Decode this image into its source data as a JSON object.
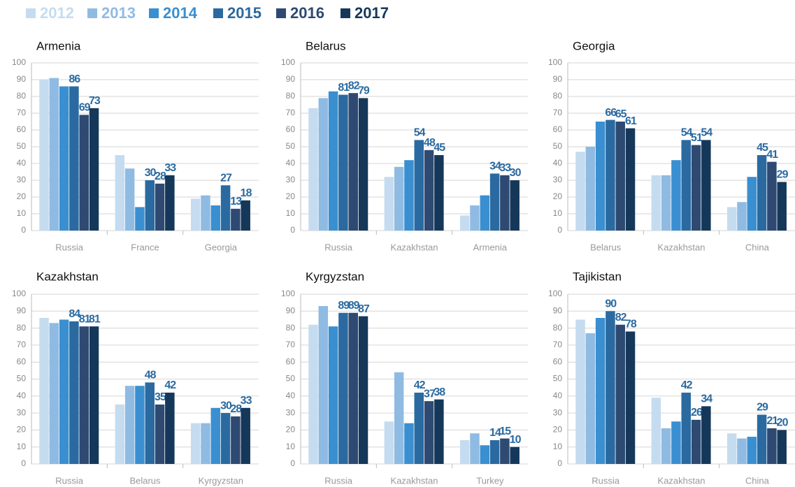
{
  "legend": [
    {
      "name": "2012",
      "color": "#c5dcf0"
    },
    {
      "name": "2013",
      "color": "#8fbbe3"
    },
    {
      "name": "2014",
      "color": "#3a8fd0"
    },
    {
      "name": "2015",
      "color": "#2a6aa0"
    },
    {
      "name": "2016",
      "color": "#2e4a72"
    },
    {
      "name": "2017",
      "color": "#15385a"
    }
  ],
  "chart_data": [
    {
      "type": "bar",
      "title": "Armenia",
      "categories": [
        "Russia",
        "France",
        "Georgia"
      ],
      "ylim": [
        0,
        100
      ],
      "yticks": [
        0,
        10,
        20,
        30,
        40,
        50,
        60,
        70,
        80,
        90,
        100
      ],
      "grid": true,
      "series": [
        {
          "values": [
            90,
            45,
            19
          ]
        },
        {
          "values": [
            91,
            37,
            21
          ]
        },
        {
          "values": [
            86,
            14,
            15
          ]
        },
        {
          "values": [
            86,
            30,
            27
          ],
          "show_labels": true
        },
        {
          "values": [
            69,
            28,
            13
          ],
          "show_labels": true
        },
        {
          "values": [
            73,
            33,
            18
          ],
          "show_labels": true
        }
      ]
    },
    {
      "type": "bar",
      "title": "Belarus",
      "categories": [
        "Russia",
        "Kazakhstan",
        "Armenia"
      ],
      "ylim": [
        0,
        100
      ],
      "yticks": [
        0,
        10,
        20,
        30,
        40,
        50,
        60,
        70,
        80,
        90,
        100
      ],
      "grid": true,
      "series": [
        {
          "values": [
            73,
            32,
            9
          ]
        },
        {
          "values": [
            79,
            38,
            15
          ]
        },
        {
          "values": [
            83,
            42,
            21
          ]
        },
        {
          "values": [
            81,
            54,
            34
          ],
          "show_labels": true
        },
        {
          "values": [
            82,
            48,
            33
          ],
          "show_labels": true
        },
        {
          "values": [
            79,
            45,
            30
          ],
          "show_labels": true
        }
      ]
    },
    {
      "type": "bar",
      "title": "Georgia",
      "categories": [
        "Belarus",
        "Kazakhstan",
        "China"
      ],
      "ylim": [
        0,
        100
      ],
      "yticks": [
        0,
        10,
        20,
        30,
        40,
        50,
        60,
        70,
        80,
        90,
        100
      ],
      "grid": true,
      "series": [
        {
          "values": [
            47,
            33,
            14
          ]
        },
        {
          "values": [
            50,
            33,
            17
          ]
        },
        {
          "values": [
            65,
            42,
            32
          ]
        },
        {
          "values": [
            66,
            54,
            45
          ],
          "show_labels": true
        },
        {
          "values": [
            65,
            51,
            41
          ],
          "show_labels": true
        },
        {
          "values": [
            61,
            54,
            29
          ],
          "show_labels": true
        }
      ]
    },
    {
      "type": "bar",
      "title": "Kazakhstan",
      "categories": [
        "Russia",
        "Belarus",
        "Kyrgyzstan"
      ],
      "ylim": [
        0,
        100
      ],
      "yticks": [
        0,
        10,
        20,
        30,
        40,
        50,
        60,
        70,
        80,
        90,
        100
      ],
      "grid": true,
      "series": [
        {
          "values": [
            86,
            35,
            24
          ]
        },
        {
          "values": [
            83,
            46,
            24
          ]
        },
        {
          "values": [
            85,
            46,
            33
          ]
        },
        {
          "values": [
            84,
            48,
            30
          ],
          "show_labels": true
        },
        {
          "values": [
            81,
            35,
            28
          ],
          "show_labels": true
        },
        {
          "values": [
            81,
            42,
            33
          ],
          "show_labels": true
        }
      ]
    },
    {
      "type": "bar",
      "title": "Kyrgyzstan",
      "categories": [
        "Russia",
        "Kazakhstan",
        "Turkey"
      ],
      "ylim": [
        0,
        100
      ],
      "yticks": [
        0,
        10,
        20,
        30,
        40,
        50,
        60,
        70,
        80,
        90,
        100
      ],
      "grid": true,
      "series": [
        {
          "values": [
            82,
            25,
            14
          ]
        },
        {
          "values": [
            93,
            54,
            18
          ]
        },
        {
          "values": [
            81,
            24,
            11
          ]
        },
        {
          "values": [
            89,
            42,
            14
          ],
          "show_labels": true
        },
        {
          "values": [
            89,
            37,
            15
          ],
          "show_labels": true
        },
        {
          "values": [
            87,
            38,
            10
          ],
          "show_labels": true
        }
      ]
    },
    {
      "type": "bar",
      "title": "Tajikistan",
      "categories": [
        "Russia",
        "Kazakhstan",
        "China"
      ],
      "ylim": [
        0,
        100
      ],
      "yticks": [
        0,
        10,
        20,
        30,
        40,
        50,
        60,
        70,
        80,
        90,
        100
      ],
      "grid": true,
      "series": [
        {
          "values": [
            85,
            39,
            18
          ]
        },
        {
          "values": [
            77,
            21,
            15
          ]
        },
        {
          "values": [
            86,
            25,
            16
          ]
        },
        {
          "values": [
            90,
            42,
            29
          ],
          "show_labels": true
        },
        {
          "values": [
            82,
            26,
            21
          ],
          "show_labels": true
        },
        {
          "values": [
            78,
            34,
            20
          ],
          "show_labels": true
        }
      ]
    }
  ]
}
